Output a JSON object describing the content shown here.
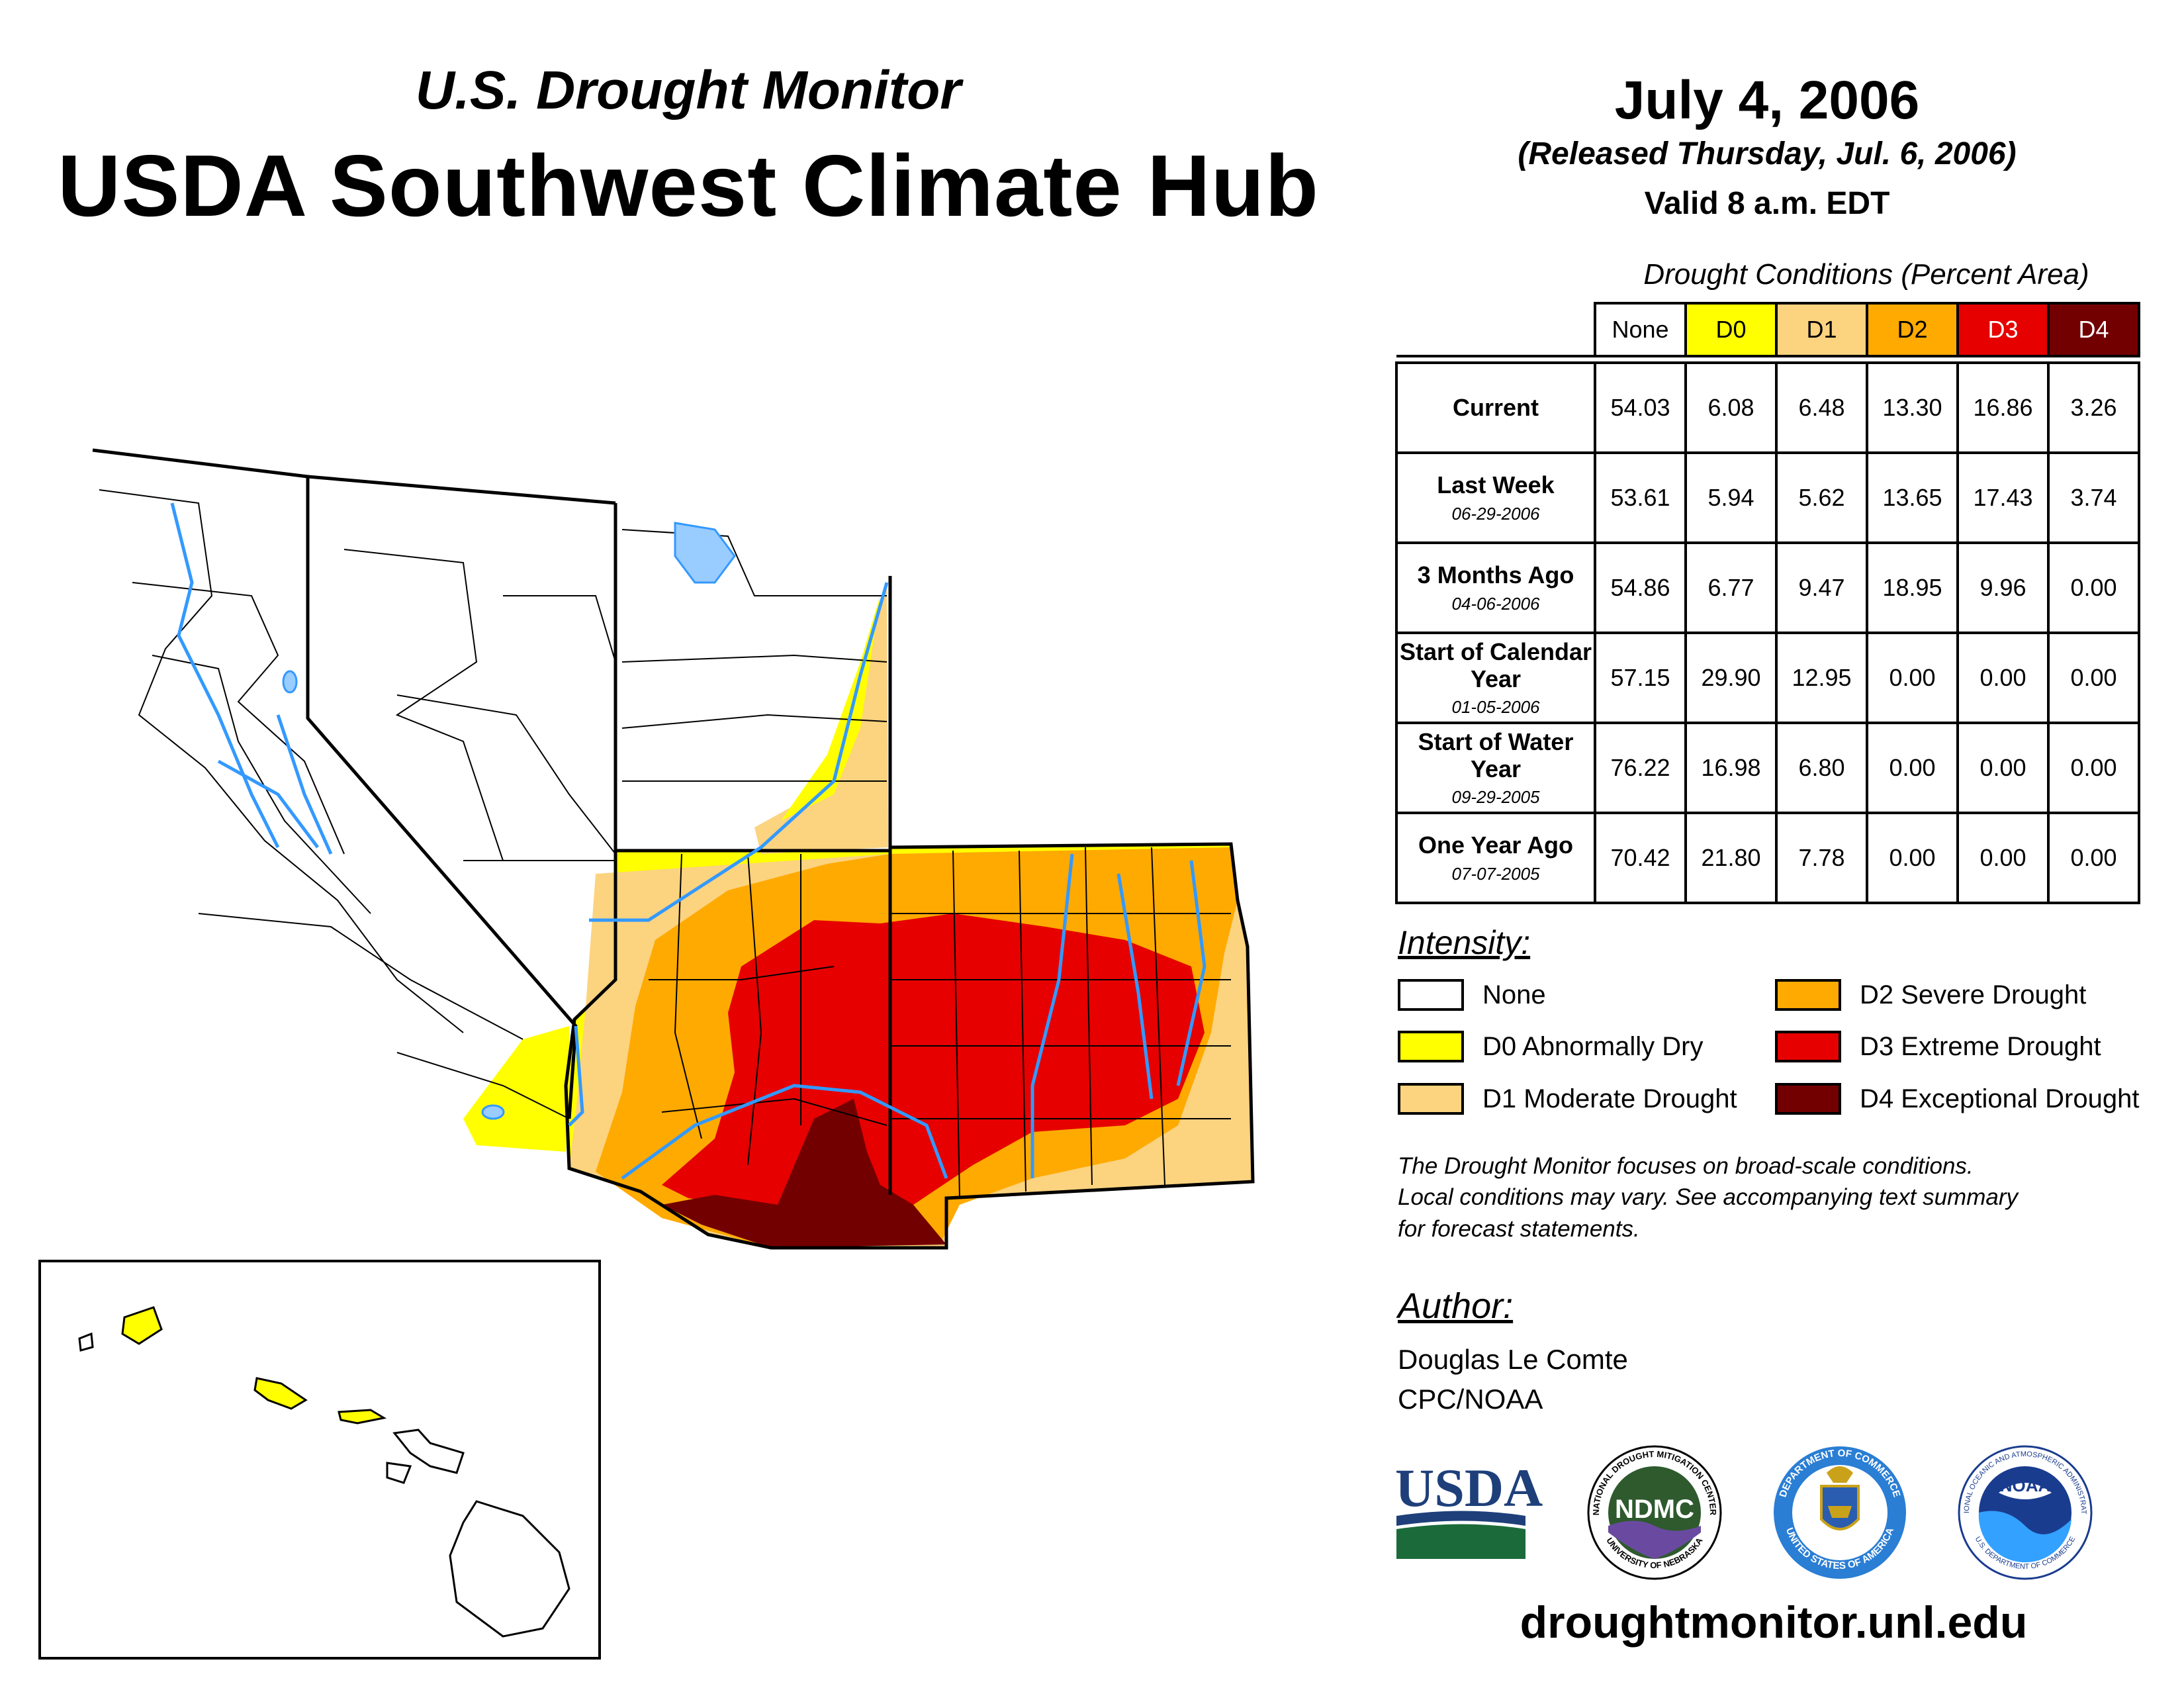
{
  "header": {
    "subtitle": "U.S. Drought Monitor",
    "title": "USDA Southwest Climate Hub",
    "date": "July 4, 2006",
    "released": "(Released Thursday, Jul. 6, 2006)",
    "valid": "Valid 8 a.m. EDT"
  },
  "table": {
    "caption": "Drought Conditions (Percent Area)",
    "columns": [
      "None",
      "D0",
      "D1",
      "D2",
      "D3",
      "D4"
    ],
    "column_colors": [
      "#ffffff",
      "#ffff00",
      "#fcd37f",
      "#ffaa00",
      "#e60000",
      "#730000"
    ],
    "rows": [
      {
        "label": "Current",
        "date": "",
        "values": [
          "54.03",
          "6.08",
          "6.48",
          "13.30",
          "16.86",
          "3.26"
        ]
      },
      {
        "label": "Last Week",
        "date": "06-29-2006",
        "values": [
          "53.61",
          "5.94",
          "5.62",
          "13.65",
          "17.43",
          "3.74"
        ]
      },
      {
        "label": "3 Months Ago",
        "date": "04-06-2006",
        "values": [
          "54.86",
          "6.77",
          "9.47",
          "18.95",
          "9.96",
          "0.00"
        ]
      },
      {
        "label": "Start of Calendar Year",
        "date": "01-05-2006",
        "values": [
          "57.15",
          "29.90",
          "12.95",
          "0.00",
          "0.00",
          "0.00"
        ]
      },
      {
        "label": "Start of Water Year",
        "date": "09-29-2005",
        "values": [
          "76.22",
          "16.98",
          "6.80",
          "0.00",
          "0.00",
          "0.00"
        ]
      },
      {
        "label": "One Year Ago",
        "date": "07-07-2005",
        "values": [
          "70.42",
          "21.80",
          "7.78",
          "0.00",
          "0.00",
          "0.00"
        ]
      }
    ]
  },
  "legend": {
    "title": "Intensity:",
    "items": [
      {
        "label": "None",
        "color": "#ffffff"
      },
      {
        "label": "D0 Abnormally Dry",
        "color": "#ffff00"
      },
      {
        "label": "D1 Moderate Drought",
        "color": "#fcd37f"
      },
      {
        "label": "D2 Severe Drought",
        "color": "#ffaa00"
      },
      {
        "label": "D3 Extreme Drought",
        "color": "#e60000"
      },
      {
        "label": "D4 Exceptional Drought",
        "color": "#730000"
      }
    ]
  },
  "note": {
    "line1": "The Drought Monitor focuses on broad-scale conditions.",
    "line2": "Local conditions may vary. See accompanying text summary",
    "line3": "for forecast statements."
  },
  "author": {
    "title": "Author:",
    "name": "Douglas Le Comte",
    "org": "CPC/NOAA"
  },
  "logos": {
    "usda": "USDA",
    "ndmc": "NDMC",
    "ndmc_ring_top": "NATIONAL DROUGHT MITIGATION CENTER",
    "ndmc_ring_bottom": "UNIVERSITY OF NEBRASKA",
    "commerce_ring_top": "DEPARTMENT OF COMMERCE",
    "commerce_ring_bottom": "UNITED STATES OF AMERICA",
    "noaa": "NOAA",
    "noaa_ring_top": "NATIONAL OCEANIC AND ATMOSPHERIC ADMINISTRATION",
    "noaa_ring_bottom": "U.S. DEPARTMENT OF COMMERCE"
  },
  "website": "droughtmonitor.unl.edu",
  "map": {
    "colors": {
      "none": "#ffffff",
      "d0": "#ffff00",
      "d1": "#fcd37f",
      "d2": "#ffaa00",
      "d3": "#e60000",
      "d4": "#730000",
      "water": "#3399ff",
      "lake": "#99ccff"
    }
  }
}
